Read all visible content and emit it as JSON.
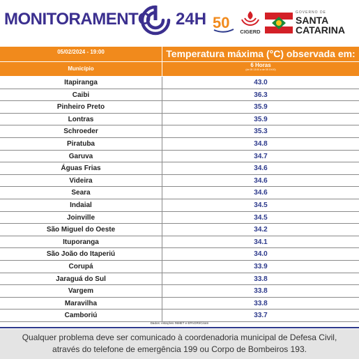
{
  "header": {
    "brand": "MONITORAMENTO",
    "brand_suffix": "24H",
    "logo50_text": "50",
    "cigerd_text": "CIGERD",
    "gov_small": "GOVERNO DE",
    "gov_line1": "SANTA",
    "gov_line2": "CATARINA"
  },
  "table": {
    "date": "05/02/2024 - 19:00",
    "title": "Temperatura máxima (°C) observada em:",
    "col_municipio": "Município",
    "col_period": "6 Horas",
    "col_period_sub": "(de 05 13:00 a de 05 19:00)",
    "rows": [
      {
        "city": "Itapiranga",
        "temp": "43.0"
      },
      {
        "city": "Caibi",
        "temp": "36.3"
      },
      {
        "city": "Pinheiro Preto",
        "temp": "35.9"
      },
      {
        "city": "Lontras",
        "temp": "35.9"
      },
      {
        "city": "Schroeder",
        "temp": "35.3"
      },
      {
        "city": "Piratuba",
        "temp": "34.8"
      },
      {
        "city": "Garuva",
        "temp": "34.7"
      },
      {
        "city": "Águas Frias",
        "temp": "34.6"
      },
      {
        "city": "Videira",
        "temp": "34.6"
      },
      {
        "city": "Seara",
        "temp": "34.6"
      },
      {
        "city": "Indaial",
        "temp": "34.5"
      },
      {
        "city": "Joinville",
        "temp": "34.5"
      },
      {
        "city": "São Miguel do Oeste",
        "temp": "34.2"
      },
      {
        "city": "Ituporanga",
        "temp": "34.1"
      },
      {
        "city": "São João do Itaperiú",
        "temp": "34.0"
      },
      {
        "city": "Corupá",
        "temp": "33.9"
      },
      {
        "city": "Jaraguá do Sul",
        "temp": "33.8"
      },
      {
        "city": "Vargem",
        "temp": "33.8"
      },
      {
        "city": "Maravilha",
        "temp": "33.8"
      },
      {
        "city": "Camboriú",
        "temp": "33.7"
      }
    ],
    "source": "Dados: estações INMET e EPAGRI/Ciram"
  },
  "footer": {
    "line1": "Qualquer problema deve ser comunicado à coordenadoria municipal de Defesa Civil,",
    "line2": "através do telefone de emergência 199 ou Corpo de Bombeiros 193."
  },
  "colors": {
    "brand_blue": "#3b2f8f",
    "orange": "#f18a1c",
    "temp_blue": "#2d3a8c",
    "flag_red": "#d32027",
    "flag_green": "#1b8a3a"
  }
}
